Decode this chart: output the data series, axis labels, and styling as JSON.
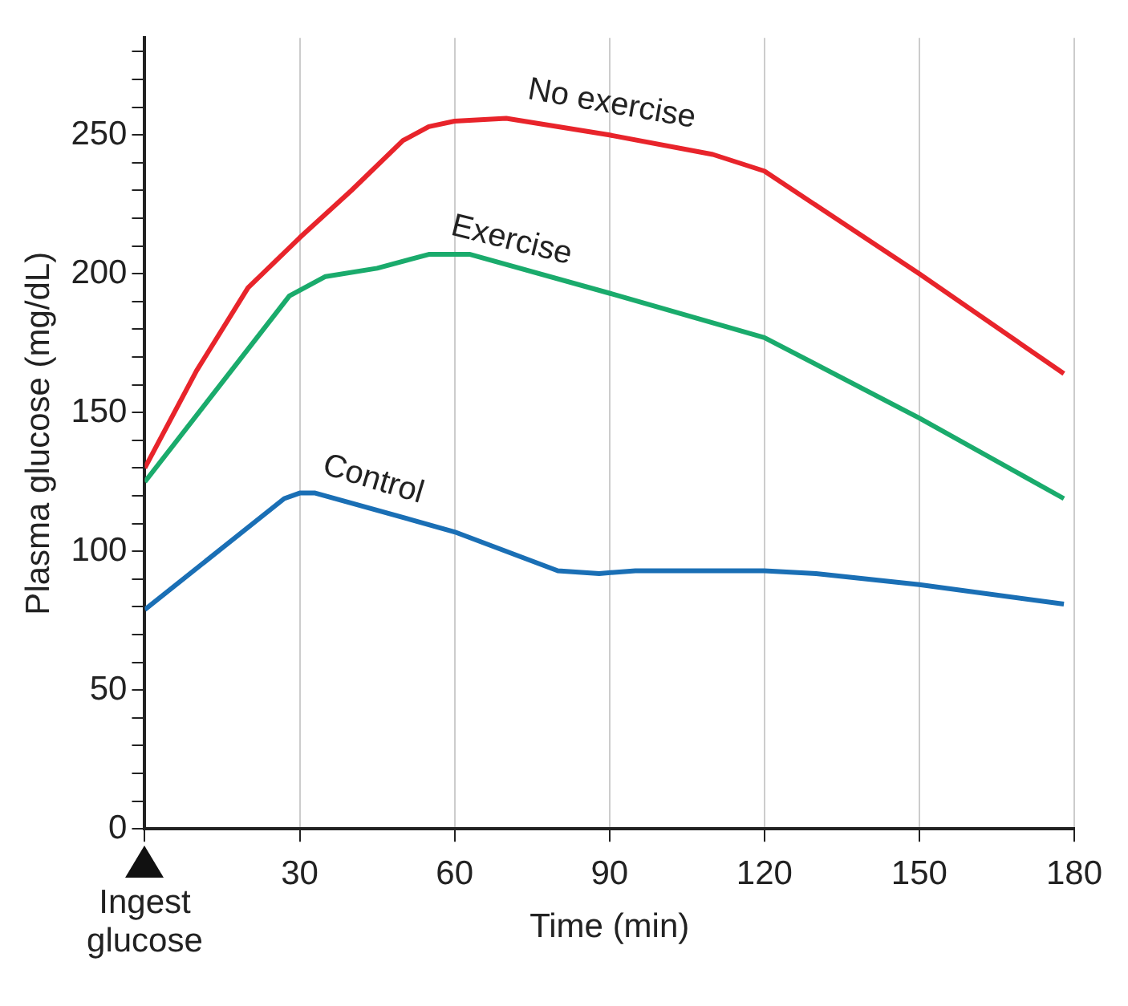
{
  "chart_data": {
    "type": "line",
    "xlabel": "Time (min)",
    "ylabel": "Plasma glucose (mg/dL)",
    "xlim": [
      0,
      180
    ],
    "xticks": [
      {
        "value": 0,
        "label": null
      },
      30,
      60,
      90,
      120,
      150,
      180
    ],
    "ylim": [
      0,
      285
    ],
    "yticks": [
      0,
      {
        "value": 10,
        "label": null
      },
      {
        "value": 20,
        "label": null
      },
      {
        "value": 30,
        "label": null
      },
      {
        "value": 40,
        "label": null
      },
      50,
      {
        "value": 60,
        "label": null
      },
      {
        "value": 70,
        "label": null
      },
      {
        "value": 80,
        "label": null
      },
      {
        "value": 90,
        "label": null
      },
      100,
      {
        "value": 110,
        "label": null
      },
      {
        "value": 120,
        "label": null
      },
      {
        "value": 130,
        "label": null
      },
      {
        "value": 140,
        "label": null
      },
      150,
      {
        "value": 160,
        "label": null
      },
      {
        "value": 170,
        "label": null
      },
      {
        "value": 180,
        "label": null
      },
      {
        "value": 190,
        "label": null
      },
      200,
      {
        "value": 210,
        "label": null
      },
      {
        "value": 220,
        "label": null
      },
      {
        "value": 230,
        "label": null
      },
      {
        "value": 240,
        "label": null
      },
      250,
      {
        "value": 260,
        "label": null
      },
      {
        "value": 270,
        "label": null
      },
      {
        "value": 280,
        "label": null
      }
    ],
    "grid": "x",
    "legend": false,
    "marker": "none",
    "line_style": "solid",
    "annotations": [
      "Ingest glucose"
    ],
    "series": [
      {
        "name": "No exercise",
        "color": "#e8242b",
        "x": [
          0,
          10,
          20,
          30,
          40,
          50,
          55,
          60,
          70,
          90,
          110,
          120,
          150,
          178
        ],
        "values": [
          130,
          165,
          195,
          213,
          230,
          248,
          253,
          255,
          256,
          250,
          243,
          237,
          200,
          164
        ]
      },
      {
        "name": "Exercise",
        "color": "#1aab6c",
        "x": [
          0,
          28,
          35,
          45,
          55,
          63,
          90,
          120,
          150,
          178
        ],
        "values": [
          125,
          192,
          199,
          202,
          207,
          207,
          193,
          177,
          148,
          119
        ]
      },
      {
        "name": "Control",
        "color": "#1a6fb5",
        "x": [
          0,
          27,
          30,
          33,
          60,
          80,
          88,
          95,
          120,
          130,
          150,
          178
        ],
        "values": [
          79,
          119,
          121,
          121,
          107,
          93,
          92,
          93,
          93,
          92,
          88,
          81
        ]
      }
    ]
  }
}
